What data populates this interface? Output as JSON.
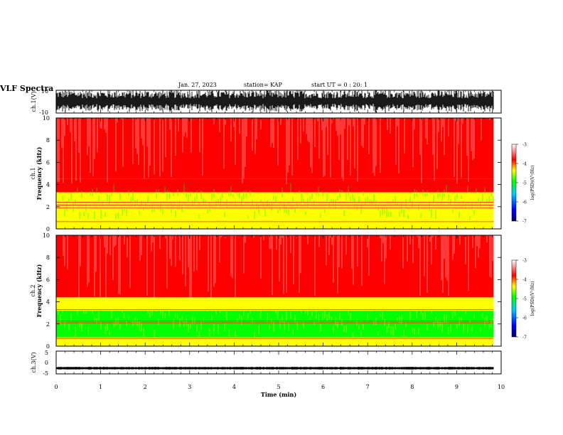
{
  "header": {
    "title": "VLF Spectra",
    "date": "Jan. 27, 2023",
    "station": "station= KAP",
    "start_ut": "start UT =  0 : 20: 1"
  },
  "colors": {
    "axes": "#000000",
    "colormap": [
      "#000060",
      "#0000ff",
      "#00c8ff",
      "#00ff00",
      "#ffff00",
      "#ff0000",
      "#ffffff"
    ]
  },
  "chart_data": [
    {
      "type": "line",
      "panel": "ch1-waveform",
      "ylabel": "ch.1(V)",
      "ylim": [
        -10,
        10
      ],
      "yticks": [
        "10",
        "-10"
      ],
      "xlim": [
        0,
        10
      ],
      "description_values": "dense noise waveform filling roughly -9 to 9 V over 0–9.8 min"
    },
    {
      "type": "heatmap",
      "panel": "ch1-spectrogram",
      "ylabel_line1": "ch.1",
      "ylabel_line2": "Frequency (kHz)",
      "ylim": [
        0,
        10
      ],
      "yticks": [
        "0",
        "2",
        "4",
        "6",
        "8",
        "10"
      ],
      "xlim": [
        0,
        10
      ],
      "data_end_min": 9.83,
      "colorbar": {
        "label": "log(PSD)(V²/Hz)",
        "range": [
          -7,
          -3
        ],
        "ticks": [
          "-3",
          "-4",
          "-5",
          "-6",
          "-7"
        ]
      },
      "bands": [
        {
          "from_khz": 0.0,
          "to_khz": 0.9,
          "level": -4.3
        },
        {
          "from_khz": 0.9,
          "to_khz": 3.3,
          "level": -4.6
        },
        {
          "from_khz": 3.3,
          "to_khz": 4.5,
          "level": -4.0
        },
        {
          "from_khz": 4.5,
          "to_khz": 10.0,
          "level": -3.6
        }
      ],
      "lines_khz": [
        0.65,
        1.9,
        2.15,
        2.4
      ]
    },
    {
      "type": "heatmap",
      "panel": "ch2-spectrogram",
      "ylabel_line1": "ch.2",
      "ylabel_line2": "Frequency (kHz)",
      "ylim": [
        0,
        10
      ],
      "yticks": [
        "0",
        "2",
        "4",
        "6",
        "8",
        "10"
      ],
      "xlim": [
        0,
        10
      ],
      "data_end_min": 9.83,
      "colorbar": {
        "label": "log(PSD)(V²/Hz)",
        "range": [
          -7,
          -3
        ],
        "ticks": [
          "-3",
          "-4",
          "-5",
          "-6",
          "-7"
        ]
      },
      "bands": [
        {
          "from_khz": 0.0,
          "to_khz": 0.8,
          "level": -4.3
        },
        {
          "from_khz": 0.8,
          "to_khz": 3.2,
          "level": -5.0
        },
        {
          "from_khz": 3.2,
          "to_khz": 4.4,
          "level": -4.1
        },
        {
          "from_khz": 4.4,
          "to_khz": 10.0,
          "level": -3.6
        }
      ],
      "lines_khz": [
        0.7,
        2.1,
        2.25,
        3.3
      ]
    },
    {
      "type": "line",
      "panel": "ch3-waveform",
      "ylabel": "ch.3(V)",
      "ylim": [
        -5,
        5
      ],
      "yticks": [
        "5",
        "0",
        "-5"
      ],
      "xlim": [
        0,
        10
      ],
      "xlabel": "Time (min)",
      "xticks": [
        "0",
        "1",
        "2",
        "3",
        "4",
        "5",
        "6",
        "7",
        "8",
        "9",
        "10"
      ],
      "description_values": "narrow band signal centred near -2.5 V, amplitude about ±0.5 V"
    }
  ]
}
